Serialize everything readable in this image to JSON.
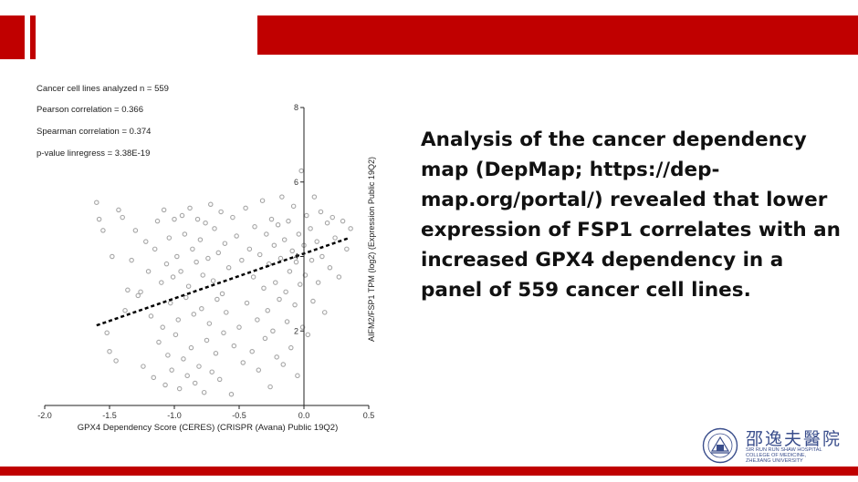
{
  "stats": {
    "n": "Cancer cell lines analyzed n = 559",
    "pearson": "Pearson correlation = 0.366",
    "spearman": "Spearman correlation = 0.374",
    "pvalue": "p-value linregress = 3.38E-19"
  },
  "description": "Analysis of the cancer dependency map (DepMap; https://dep-map.org/portal/) revealed that lower expression of FSP1 correlates with an increased GPX4 dependency in a panel of 559 cancer cell lines.",
  "logo": {
    "title": "邵逸夫醫院",
    "sub1": "SIR RUN RUN SHAW HOSPITAL",
    "sub2": "COLLEGE OF MEDICINE,",
    "sub3": "ZHEJIANG UNIVERSITY"
  },
  "colors": {
    "accent": "#c00000",
    "points": "#a6a6a6",
    "trendline": "#000000"
  },
  "chart_data": {
    "type": "scatter",
    "xlabel": "GPX4 Dependency Score (CERES) (CRISPR (Avana) Public 19Q2)",
    "ylabel": "AIFM2/FSP1 TPM (log2) (Expression Public 19Q2)",
    "xlim": [
      -2.0,
      0.5
    ],
    "ylim": [
      0,
      8
    ],
    "xticks": [
      "-2.0",
      "-1.5",
      "-1.0",
      "-0.5",
      "0.0",
      "0.5"
    ],
    "yticks": [
      "2",
      "4",
      "6",
      "8"
    ],
    "n": 559,
    "trendline": {
      "x": [
        -1.6,
        0.35
      ],
      "y": [
        2.15,
        4.5
      ]
    },
    "points": [
      [
        -1.6,
        5.45
      ],
      [
        -1.58,
        5.0
      ],
      [
        -1.55,
        4.7
      ],
      [
        -1.52,
        1.95
      ],
      [
        -1.5,
        1.45
      ],
      [
        -1.48,
        4.0
      ],
      [
        -1.45,
        1.2
      ],
      [
        -1.43,
        5.25
      ],
      [
        -1.4,
        5.05
      ],
      [
        -1.38,
        2.55
      ],
      [
        -1.36,
        3.1
      ],
      [
        -1.33,
        3.9
      ],
      [
        -1.3,
        4.7
      ],
      [
        -1.28,
        2.95
      ],
      [
        -1.26,
        3.05
      ],
      [
        -1.24,
        1.05
      ],
      [
        -1.22,
        4.4
      ],
      [
        -1.2,
        3.6
      ],
      [
        -1.18,
        2.4
      ],
      [
        -1.16,
        0.75
      ],
      [
        -1.15,
        4.2
      ],
      [
        -1.13,
        4.95
      ],
      [
        -1.12,
        1.7
      ],
      [
        -1.1,
        3.3
      ],
      [
        -1.09,
        2.1
      ],
      [
        -1.08,
        5.25
      ],
      [
        -1.07,
        0.55
      ],
      [
        -1.06,
        3.8
      ],
      [
        -1.05,
        1.35
      ],
      [
        -1.04,
        4.5
      ],
      [
        -1.03,
        2.75
      ],
      [
        -1.02,
        0.95
      ],
      [
        -1.01,
        3.45
      ],
      [
        -1.0,
        5.0
      ],
      [
        -0.99,
        1.9
      ],
      [
        -0.98,
        4.0
      ],
      [
        -0.97,
        2.3
      ],
      [
        -0.96,
        0.45
      ],
      [
        -0.95,
        3.6
      ],
      [
        -0.94,
        5.1
      ],
      [
        -0.93,
        1.25
      ],
      [
        -0.92,
        4.6
      ],
      [
        -0.91,
        2.9
      ],
      [
        -0.9,
        0.8
      ],
      [
        -0.89,
        3.2
      ],
      [
        -0.88,
        5.3
      ],
      [
        -0.87,
        1.55
      ],
      [
        -0.86,
        4.2
      ],
      [
        -0.85,
        2.45
      ],
      [
        -0.84,
        0.6
      ],
      [
        -0.83,
        3.85
      ],
      [
        -0.82,
        5.0
      ],
      [
        -0.81,
        1.05
      ],
      [
        -0.8,
        4.45
      ],
      [
        -0.79,
        2.6
      ],
      [
        -0.78,
        3.5
      ],
      [
        -0.77,
        0.35
      ],
      [
        -0.76,
        4.9
      ],
      [
        -0.75,
        1.75
      ],
      [
        -0.74,
        3.95
      ],
      [
        -0.73,
        2.2
      ],
      [
        -0.72,
        5.4
      ],
      [
        -0.71,
        0.9
      ],
      [
        -0.7,
        3.35
      ],
      [
        -0.69,
        4.75
      ],
      [
        -0.68,
        1.4
      ],
      [
        -0.67,
        2.85
      ],
      [
        -0.66,
        4.1
      ],
      [
        -0.65,
        0.7
      ],
      [
        -0.64,
        5.2
      ],
      [
        -0.63,
        3.0
      ],
      [
        -0.62,
        1.95
      ],
      [
        -0.61,
        4.35
      ],
      [
        -0.6,
        2.5
      ],
      [
        -0.58,
        3.7
      ],
      [
        -0.56,
        0.3
      ],
      [
        -0.55,
        5.05
      ],
      [
        -0.54,
        1.6
      ],
      [
        -0.52,
        4.55
      ],
      [
        -0.5,
        2.1
      ],
      [
        -0.48,
        3.9
      ],
      [
        -0.47,
        1.15
      ],
      [
        -0.45,
        5.3
      ],
      [
        -0.44,
        2.75
      ],
      [
        -0.42,
        4.2
      ],
      [
        -0.4,
        1.45
      ],
      [
        -0.39,
        3.45
      ],
      [
        -0.38,
        4.8
      ],
      [
        -0.36,
        2.3
      ],
      [
        -0.35,
        0.95
      ],
      [
        -0.34,
        4.05
      ],
      [
        -0.32,
        5.5
      ],
      [
        -0.31,
        3.15
      ],
      [
        -0.3,
        1.8
      ],
      [
        -0.29,
        4.6
      ],
      [
        -0.28,
        2.55
      ],
      [
        -0.27,
        3.8
      ],
      [
        -0.26,
        0.5
      ],
      [
        -0.25,
        5.0
      ],
      [
        -0.24,
        2.0
      ],
      [
        -0.23,
        4.3
      ],
      [
        -0.22,
        3.3
      ],
      [
        -0.21,
        1.3
      ],
      [
        -0.2,
        4.85
      ],
      [
        -0.19,
        2.85
      ],
      [
        -0.18,
        3.95
      ],
      [
        -0.17,
        5.6
      ],
      [
        -0.16,
        1.1
      ],
      [
        -0.15,
        4.45
      ],
      [
        -0.14,
        3.05
      ],
      [
        -0.13,
        2.25
      ],
      [
        -0.12,
        4.95
      ],
      [
        -0.11,
        3.6
      ],
      [
        -0.1,
        1.55
      ],
      [
        -0.09,
        4.15
      ],
      [
        -0.08,
        5.35
      ],
      [
        -0.07,
        2.7
      ],
      [
        -0.06,
        3.85
      ],
      [
        -0.05,
        0.8
      ],
      [
        -0.04,
        4.6
      ],
      [
        -0.03,
        3.25
      ],
      [
        -0.02,
        6.3
      ],
      [
        -0.01,
        2.1
      ],
      [
        0.0,
        4.3
      ],
      [
        0.01,
        3.5
      ],
      [
        0.02,
        5.1
      ],
      [
        0.03,
        1.9
      ],
      [
        0.05,
        4.75
      ],
      [
        0.06,
        3.9
      ],
      [
        0.07,
        2.8
      ],
      [
        0.08,
        5.6
      ],
      [
        0.1,
        4.4
      ],
      [
        0.11,
        3.3
      ],
      [
        0.13,
        5.2
      ],
      [
        0.14,
        4.0
      ],
      [
        0.16,
        2.5
      ],
      [
        0.18,
        4.9
      ],
      [
        0.2,
        3.7
      ],
      [
        0.22,
        5.05
      ],
      [
        0.24,
        4.5
      ],
      [
        0.27,
        3.45
      ],
      [
        0.3,
        4.95
      ],
      [
        0.33,
        4.2
      ],
      [
        0.36,
        4.75
      ]
    ]
  }
}
